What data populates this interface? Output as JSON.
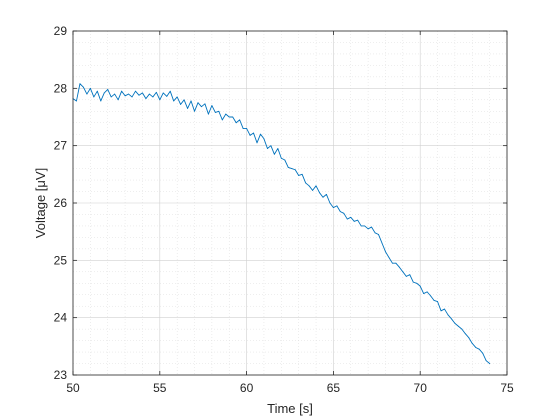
{
  "chart_data": {
    "type": "line",
    "title": "",
    "xlabel": "Time [s]",
    "ylabel": "Voltage [μV]",
    "xlim": [
      50,
      74
    ],
    "ylim": [
      23,
      29
    ],
    "x_axis_max_tick": 75,
    "xticks": [
      "50",
      "55",
      "60",
      "65",
      "70",
      "75"
    ],
    "yticks": [
      "23",
      "24",
      "25",
      "26",
      "27",
      "28",
      "29"
    ],
    "grid": true,
    "minor_grid": true,
    "series": [
      {
        "color": "#0072BD",
        "x": [
          50.0,
          50.2,
          50.4,
          50.6,
          50.8,
          51.0,
          51.2,
          51.4,
          51.6,
          51.8,
          52.0,
          52.2,
          52.4,
          52.6,
          52.8,
          53.0,
          53.2,
          53.4,
          53.6,
          53.8,
          54.0,
          54.2,
          54.4,
          54.6,
          54.8,
          55.0,
          55.2,
          55.4,
          55.6,
          55.8,
          56.0,
          56.2,
          56.4,
          56.6,
          56.8,
          57.0,
          57.2,
          57.4,
          57.6,
          57.8,
          58.0,
          58.2,
          58.4,
          58.6,
          58.8,
          59.0,
          59.2,
          59.4,
          59.6,
          59.8,
          60.0,
          60.2,
          60.4,
          60.6,
          60.8,
          61.0,
          61.2,
          61.4,
          61.6,
          61.8,
          62.0,
          62.2,
          62.4,
          62.6,
          62.8,
          63.0,
          63.2,
          63.4,
          63.6,
          63.8,
          64.0,
          64.2,
          64.4,
          64.6,
          64.8,
          65.0,
          65.2,
          65.4,
          65.6,
          65.8,
          66.0,
          66.2,
          66.4,
          66.6,
          66.8,
          67.0,
          67.2,
          67.4,
          67.6,
          67.8,
          68.0,
          68.2,
          68.4,
          68.6,
          68.8,
          69.0,
          69.2,
          69.4,
          69.6,
          69.8,
          70.0,
          70.2,
          70.4,
          70.6,
          70.8,
          71.0,
          71.2,
          71.4,
          71.6,
          71.8,
          72.0,
          72.2,
          72.4,
          72.6,
          72.8,
          73.0,
          73.2,
          73.4,
          73.6,
          73.8,
          74.0
        ],
        "y": [
          27.82,
          27.78,
          28.08,
          28.02,
          27.9,
          28.0,
          27.85,
          27.95,
          27.78,
          27.92,
          27.98,
          27.85,
          27.9,
          27.8,
          27.95,
          27.87,
          27.9,
          27.85,
          27.95,
          27.88,
          27.92,
          27.82,
          27.9,
          27.85,
          27.93,
          27.8,
          27.92,
          27.86,
          27.95,
          27.78,
          27.85,
          27.72,
          27.8,
          27.65,
          27.78,
          27.6,
          27.75,
          27.68,
          27.73,
          27.55,
          27.7,
          27.58,
          27.6,
          27.45,
          27.55,
          27.5,
          27.5,
          27.4,
          27.45,
          27.3,
          27.3,
          27.18,
          27.22,
          27.05,
          27.2,
          27.12,
          26.95,
          27.0,
          26.85,
          26.95,
          26.78,
          26.75,
          26.62,
          26.6,
          26.58,
          26.48,
          26.5,
          26.35,
          26.3,
          26.22,
          26.3,
          26.18,
          26.1,
          26.15,
          26.0,
          25.92,
          25.95,
          25.85,
          25.82,
          25.72,
          25.75,
          25.68,
          25.7,
          25.6,
          25.6,
          25.55,
          25.58,
          25.48,
          25.45,
          25.3,
          25.15,
          25.05,
          24.95,
          24.95,
          24.88,
          24.8,
          24.72,
          24.75,
          24.62,
          24.6,
          24.55,
          24.42,
          24.45,
          24.38,
          24.3,
          24.28,
          24.12,
          24.15,
          24.05,
          23.98,
          23.9,
          23.85,
          23.8,
          23.72,
          23.65,
          23.55,
          23.48,
          23.45,
          23.38,
          23.25,
          23.2
        ]
      }
    ]
  }
}
